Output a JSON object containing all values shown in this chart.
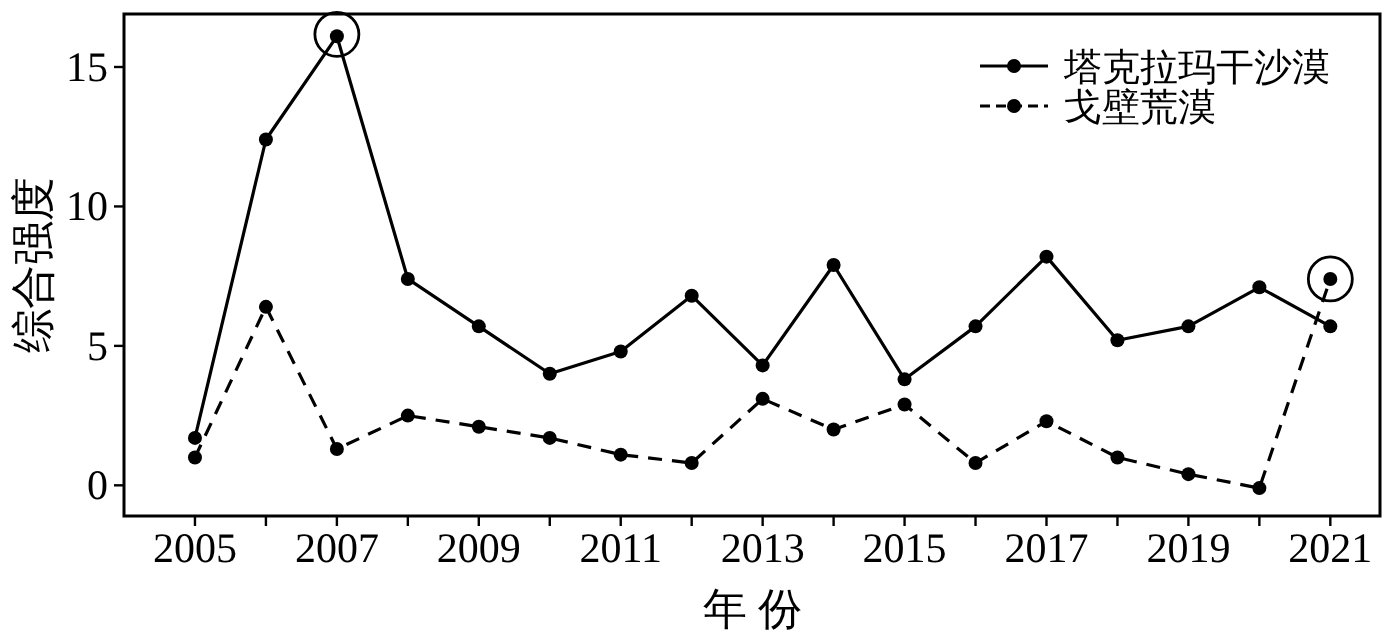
{
  "chart_data": {
    "type": "line",
    "xlabel": "年 份",
    "ylabel": "综合强度",
    "x": [
      2005,
      2006,
      2007,
      2008,
      2009,
      2010,
      2011,
      2012,
      2013,
      2014,
      2015,
      2016,
      2017,
      2018,
      2019,
      2020,
      2021
    ],
    "series": [
      {
        "name": "塔克拉玛干沙漠",
        "color": "#000000",
        "line_style": "solid",
        "values": [
          1.7,
          12.4,
          16.1,
          7.4,
          5.7,
          4.0,
          4.8,
          6.8,
          4.3,
          7.9,
          3.8,
          5.7,
          8.2,
          5.2,
          5.7,
          7.1,
          5.7
        ]
      },
      {
        "name": "戈壁荒漠",
        "color": "#000000",
        "line_style": "dashed",
        "values": [
          1.0,
          6.4,
          1.3,
          2.5,
          2.1,
          1.7,
          1.1,
          0.8,
          3.1,
          2.0,
          2.9,
          0.8,
          2.3,
          1.0,
          0.4,
          -0.1,
          7.4
        ]
      }
    ],
    "xlim": [
      2004,
      2021.7
    ],
    "ylim": [
      -1.1,
      16.9
    ],
    "xticks": [
      2005,
      {
        "value": 2006,
        "label": null
      },
      2007,
      {
        "value": 2008,
        "label": null
      },
      2009,
      {
        "value": 2010,
        "label": null
      },
      2011,
      {
        "value": 2012,
        "label": null
      },
      2013,
      {
        "value": 2014,
        "label": null
      },
      2015,
      {
        "value": 2016,
        "label": null
      },
      2017,
      {
        "value": 2018,
        "label": null
      },
      2019,
      {
        "value": 2020,
        "label": null
      },
      2021
    ],
    "yticks": [
      0,
      5,
      10,
      15
    ],
    "marker": "circle",
    "legend": "top right",
    "grid": false
  }
}
